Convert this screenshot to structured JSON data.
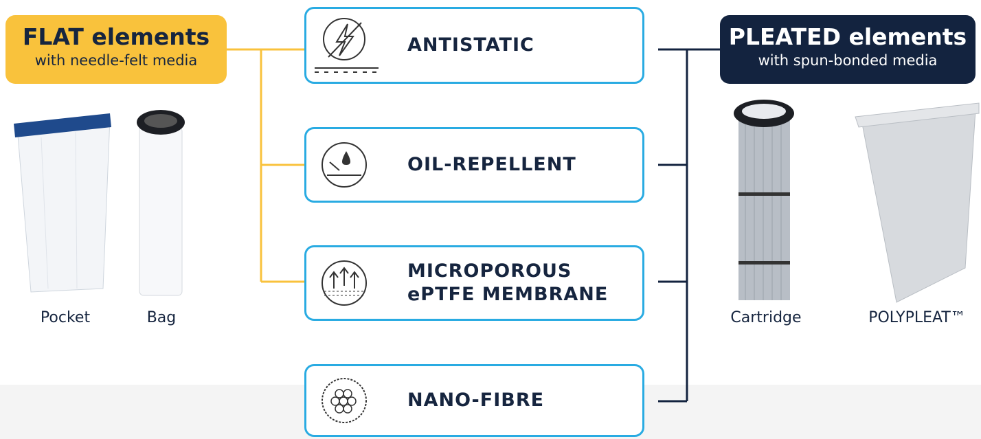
{
  "flat": {
    "title": "FLAT elements",
    "subtitle": "with needle-felt media",
    "products": [
      "Pocket",
      "Bag"
    ]
  },
  "treatments": [
    {
      "lines": [
        "ANTISTATIC"
      ]
    },
    {
      "lines": [
        "OIL-REPELLENT"
      ]
    },
    {
      "lines": [
        "MICROPOROUS",
        "ePTFE MEMBRANE"
      ]
    },
    {
      "lines": [
        "NANO-FIBRE"
      ]
    }
  ],
  "pleated": {
    "title": "PLEATED elements",
    "subtitle": "with spun-bonded media",
    "products": [
      "Cartridge",
      "POLYPLEAT™"
    ]
  }
}
